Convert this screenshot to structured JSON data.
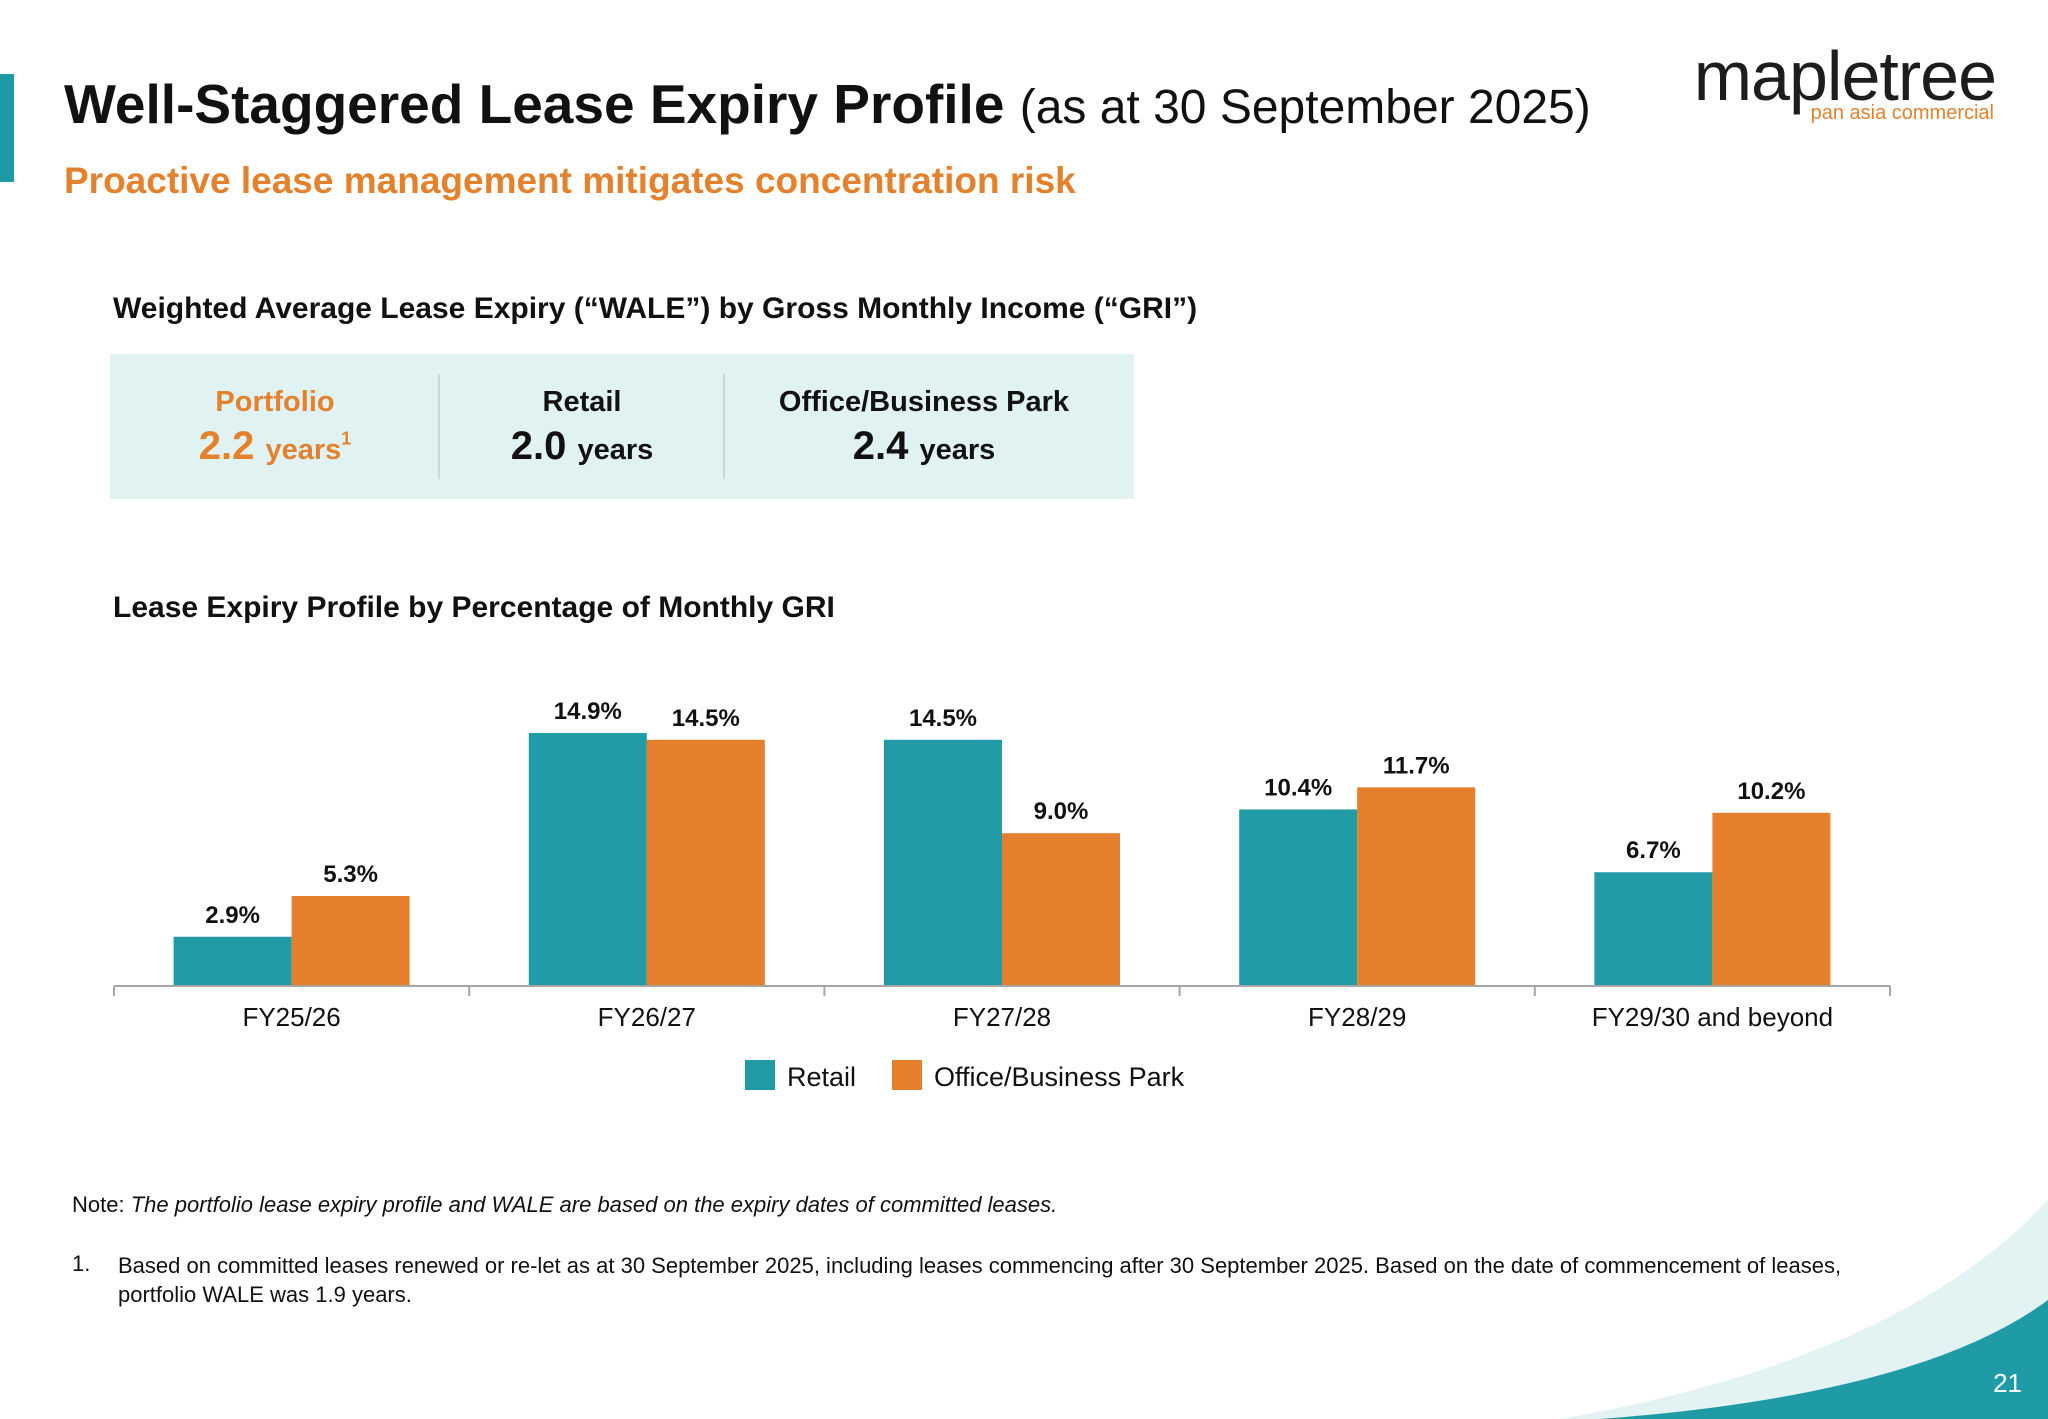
{
  "header": {
    "title": "Well-Staggered Lease Expiry Profile",
    "title_date": "(as at 30 September 2025)",
    "subtitle": "Proactive lease management mitigates concentration risk"
  },
  "logo": {
    "wordmark": "mapletree",
    "tagline": "pan asia commercial"
  },
  "wale": {
    "heading": "Weighted Average Lease Expiry (“WALE”) by Gross Monthly Income (“GRI”)",
    "items": [
      {
        "label": "Portfolio",
        "value": "2.2",
        "unit": "years",
        "footnote": "1"
      },
      {
        "label": "Retail",
        "value": "2.0",
        "unit": "years"
      },
      {
        "label": "Office/Business Park",
        "value": "2.4",
        "unit": "years"
      }
    ]
  },
  "chart_data": {
    "type": "bar",
    "title": "Lease Expiry Profile by Percentage of Monthly GRI",
    "categories": [
      "FY25/26",
      "FY26/27",
      "FY27/28",
      "FY28/29",
      "FY29/30 and beyond"
    ],
    "series": [
      {
        "name": "Retail",
        "values": [
          2.9,
          14.9,
          14.5,
          10.4,
          6.7
        ],
        "labels": [
          "2.9%",
          "14.9%",
          "14.5%",
          "10.4%",
          "6.7%"
        ]
      },
      {
        "name": "Office/Business Park",
        "values": [
          5.3,
          14.5,
          9.0,
          11.7,
          10.2
        ],
        "labels": [
          "5.3%",
          "14.5%",
          "9.0%",
          "11.7%",
          "10.2%"
        ]
      }
    ],
    "colors": [
      "#219ba6",
      "#e57f2c"
    ],
    "ylim": [
      0,
      15
    ],
    "legend": "bottom-center"
  },
  "notes": {
    "note_prefix": "Note:",
    "note_text": "The portfolio lease expiry profile and WALE are based on the expiry dates of committed leases.",
    "footnote_number": "1.",
    "footnote_text": "Based on committed leases renewed or re-let as at 30 September 2025, including leases commencing after 30 September 2025. Based on the date of commencement of leases, portfolio WALE was 1.9 years."
  },
  "page_number": "21"
}
